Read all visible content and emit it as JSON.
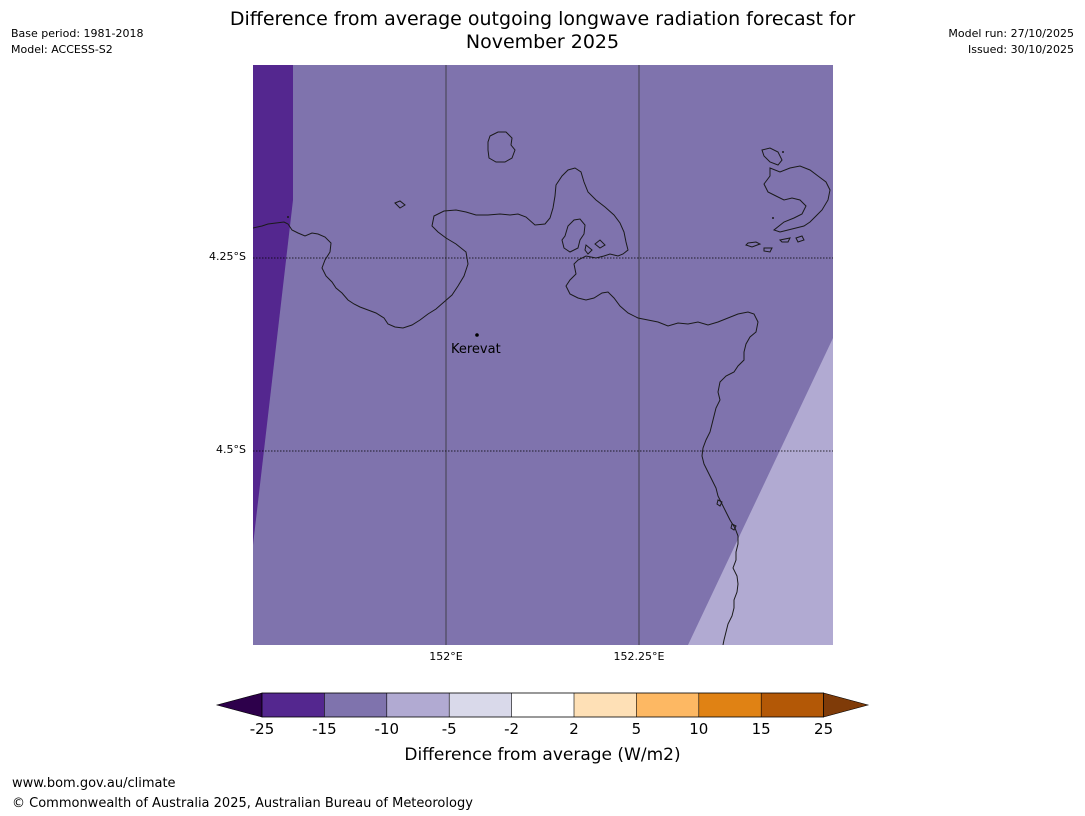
{
  "title": {
    "line1": "Difference from average outgoing longwave radiation forecast for",
    "line2": "November 2025"
  },
  "meta": {
    "base_period": "Base period: 1981-2018",
    "model": "Model: ACCESS-S2",
    "model_run": "Model run: 27/10/2025",
    "issued": "Issued: 30/10/2025"
  },
  "map": {
    "latitude_labels": [
      "4.25°S",
      "4.5°S"
    ],
    "longitude_labels": [
      "152°E",
      "152.25°E"
    ],
    "places": [
      {
        "name": "Kerevat"
      }
    ]
  },
  "colorbar": {
    "ticks": [
      "-25",
      "-15",
      "-10",
      "-5",
      "-2",
      "2",
      "5",
      "10",
      "15",
      "25"
    ],
    "colors": [
      "#54278f",
      "#7f73ad",
      "#b1aad2",
      "#d9d9ea",
      "#ffffff",
      "#fee0b6",
      "#fdb863",
      "#e08214",
      "#b35806"
    ],
    "under_color": "#2d004b",
    "over_color": "#7f3b08",
    "label": "Difference from average (W/m2)"
  },
  "colors": {
    "shade_minus15_to_minus25": "#54278f",
    "shade_minus10_to_minus15": "#7f73ad",
    "shade_minus5_to_minus10": "#b1aad2",
    "coastline": "#1a1a1a"
  },
  "footer": {
    "url": "www.bom.gov.au/climate",
    "copyright": "© Commonwealth of Australia 2025, Australian Bureau of Meteorology"
  }
}
